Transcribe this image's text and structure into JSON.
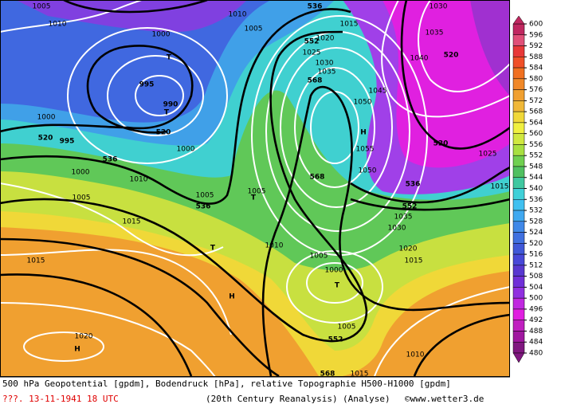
{
  "colorbar": {
    "ticks": [
      600,
      596,
      592,
      588,
      584,
      580,
      576,
      572,
      568,
      564,
      560,
      556,
      552,
      548,
      544,
      540,
      536,
      532,
      528,
      524,
      520,
      516,
      512,
      508,
      504,
      500,
      496,
      492,
      488,
      484,
      480
    ],
    "colors": [
      "#c02860",
      "#e05078",
      "#e83838",
      "#f05028",
      "#f07020",
      "#f08828",
      "#f0a030",
      "#f0b838",
      "#f0d838",
      "#f0f040",
      "#d0e840",
      "#a8e040",
      "#70d050",
      "#50c060",
      "#40c8a0",
      "#40d0d8",
      "#40c0f0",
      "#40a8f0",
      "#4088e8",
      "#4070e0",
      "#4058d8",
      "#4848d8",
      "#5838d0",
      "#7030d8",
      "#9030e0",
      "#c028e0",
      "#e020e0",
      "#c020c0",
      "#a018a0",
      "#801880"
    ]
  },
  "map": {
    "labels": [
      "1005",
      "1010",
      "1000",
      "T",
      "995",
      "990",
      "T",
      "520",
      "1000",
      "520",
      "995",
      "1000",
      "536",
      "1000",
      "1010",
      "1005",
      "536",
      "1005",
      "T",
      "1005",
      "1015",
      "T",
      "1010",
      "1015",
      "H",
      "1005",
      "1000",
      "T",
      "1005",
      "552",
      "1020",
      "H",
      "568",
      "1015",
      "1010",
      "1015",
      "1020",
      "1030",
      "1035",
      "552",
      "536",
      "1050",
      "568",
      "H",
      "1055",
      "1050",
      "1045",
      "568",
      "1035",
      "1030",
      "1025",
      "552",
      "1020",
      "1005",
      "1010",
      "536",
      "1015",
      "1030",
      "1035",
      "1040",
      "520",
      "520",
      "1025",
      "1015"
    ]
  },
  "footer": {
    "line1": "500 hPa Geopotential [gpdm], Bodendruck [hPa], relative Topographie H500-H1000 [gpdm]",
    "date": "???. 13-11-1941  18 UTC",
    "source": "(20th Century Reanalysis)",
    "mode": "(Analyse)",
    "copyright": "©www.wetter3.de"
  }
}
